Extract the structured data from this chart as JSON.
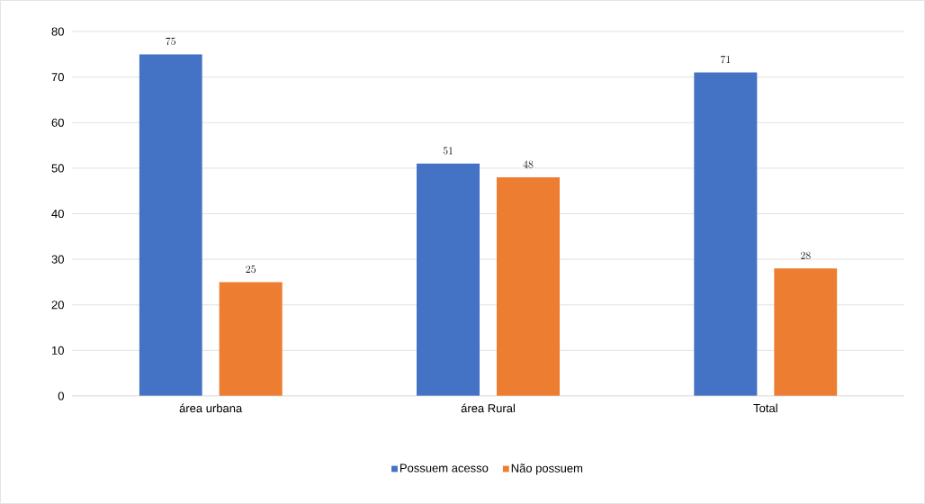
{
  "chart_data": {
    "type": "bar",
    "categories": [
      "área urbana",
      "área Rural",
      "Total"
    ],
    "series": [
      {
        "name": "Possuem acesso",
        "color": "#4472c4",
        "values": [
          75,
          51,
          71
        ]
      },
      {
        "name": "Não possuem",
        "color": "#ed7d31",
        "values": [
          25,
          48,
          28
        ]
      }
    ],
    "ylim": [
      0,
      80
    ],
    "yticks": [
      0,
      10,
      20,
      30,
      40,
      50,
      60,
      70,
      80
    ],
    "grid": "y",
    "legend": "bottom",
    "data_labels": true
  }
}
